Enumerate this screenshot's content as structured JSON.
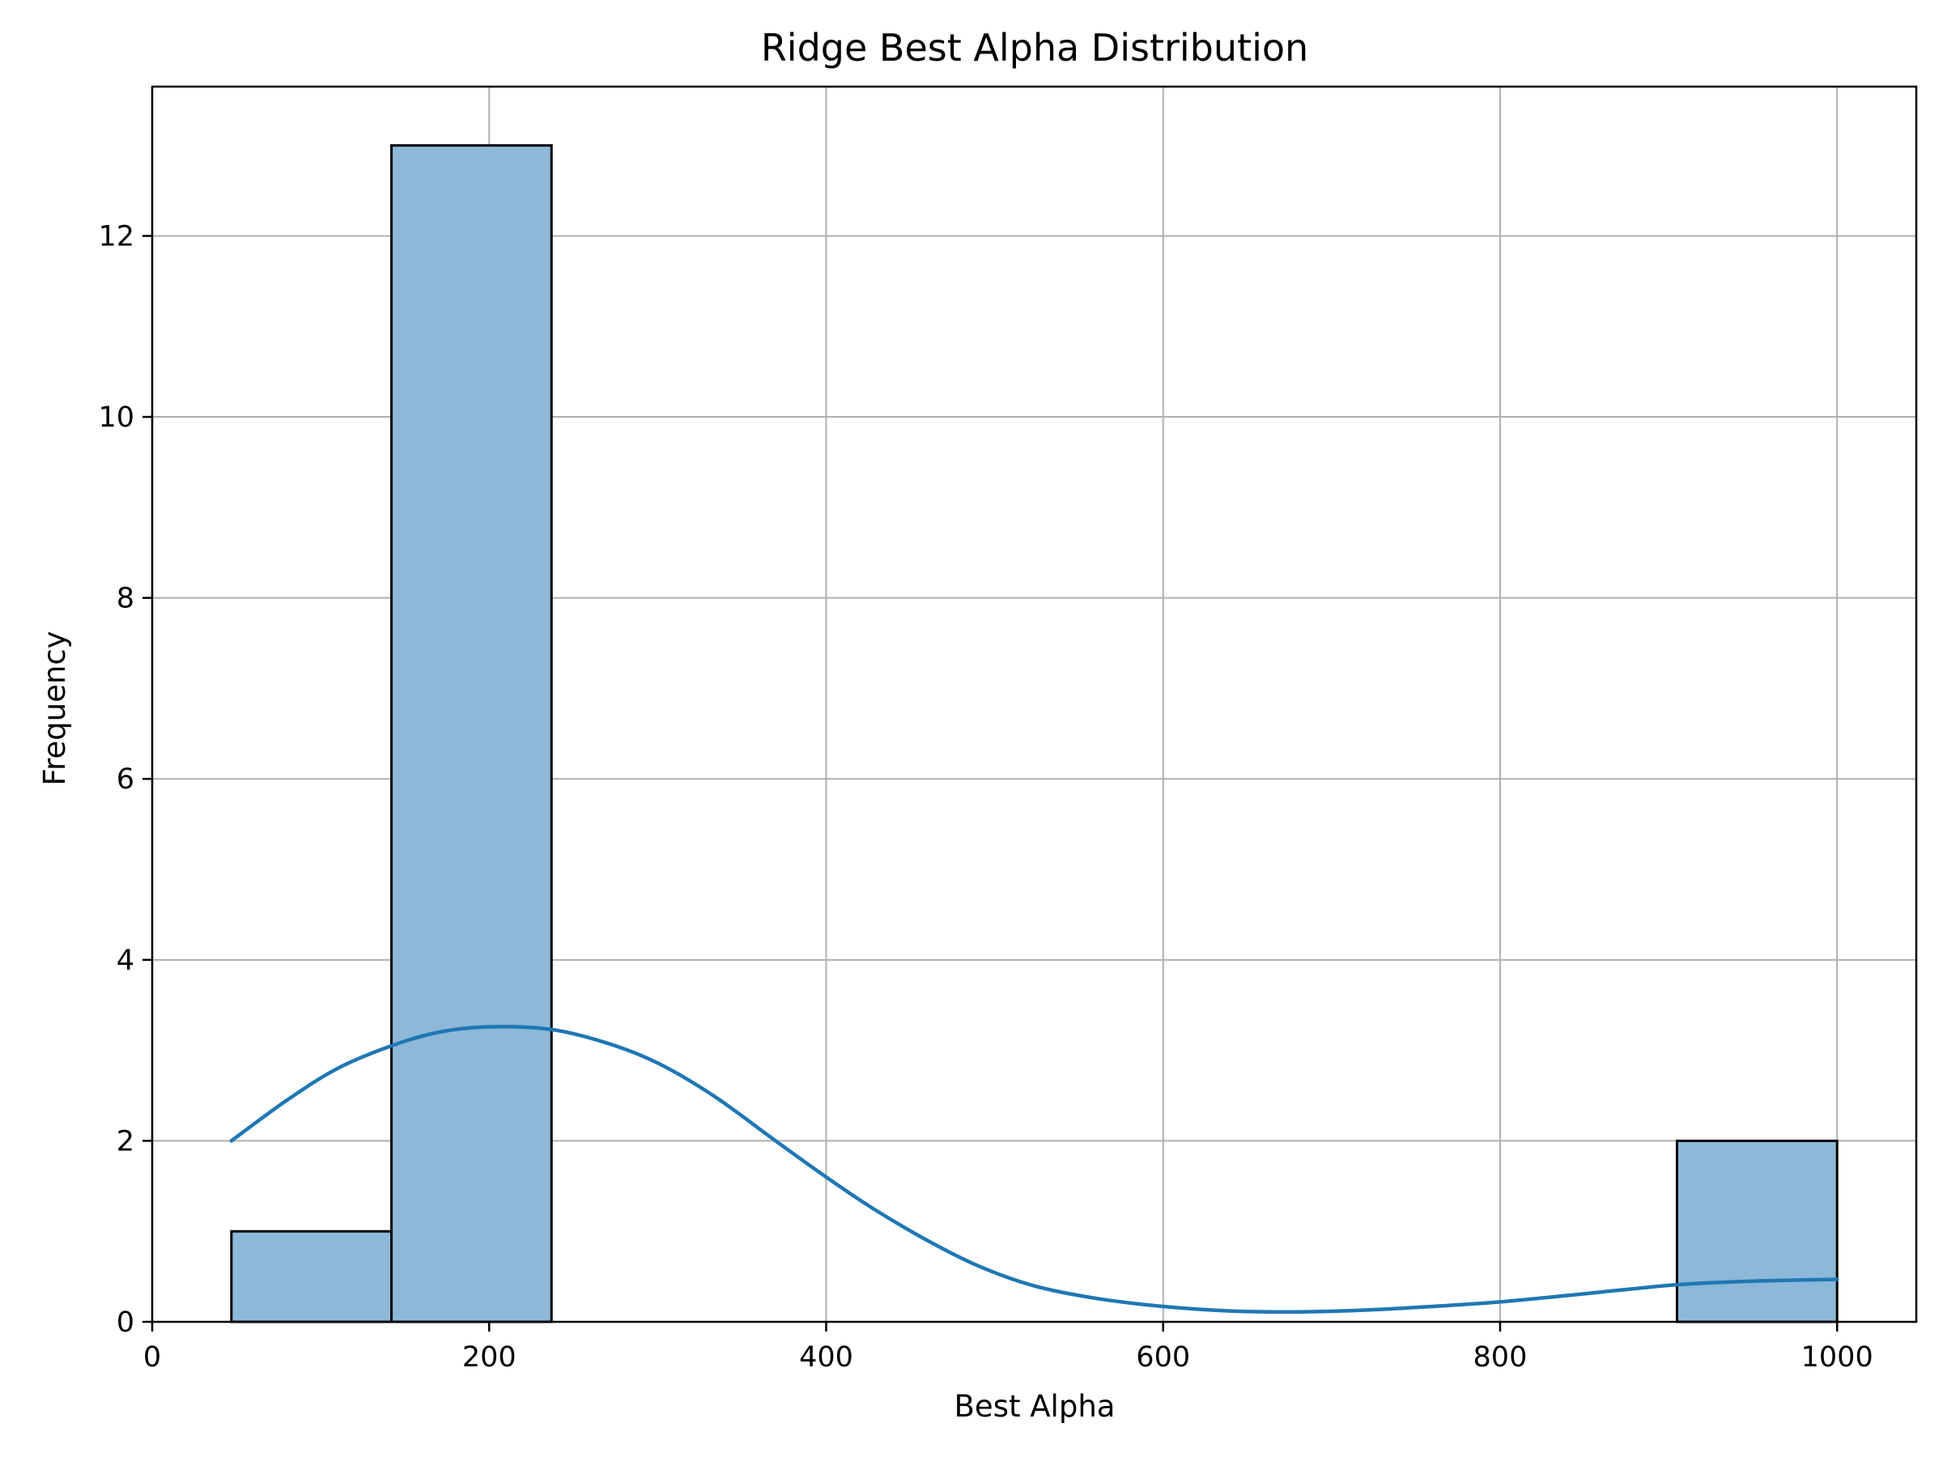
{
  "chart_data": {
    "type": "bar",
    "title": "Ridge Best Alpha Distribution",
    "xlabel": "Best Alpha",
    "ylabel": "Frequency",
    "xlim": [
      0,
      1047
    ],
    "ylim": [
      0,
      13.65
    ],
    "xticks": [
      0,
      200,
      400,
      600,
      800,
      1000
    ],
    "yticks": [
      0,
      2,
      4,
      6,
      8,
      10,
      12
    ],
    "grid": true,
    "bins": [
      {
        "start": 47,
        "end": 142,
        "count": 1
      },
      {
        "start": 142,
        "end": 237,
        "count": 13
      },
      {
        "start": 237,
        "end": 333,
        "count": 0
      },
      {
        "start": 333,
        "end": 428,
        "count": 0
      },
      {
        "start": 428,
        "end": 523,
        "count": 0
      },
      {
        "start": 523,
        "end": 619,
        "count": 0
      },
      {
        "start": 619,
        "end": 714,
        "count": 0
      },
      {
        "start": 714,
        "end": 809,
        "count": 0
      },
      {
        "start": 809,
        "end": 905,
        "count": 0
      },
      {
        "start": 905,
        "end": 1000,
        "count": 2
      }
    ],
    "kde": {
      "x": [
        47,
        80,
        110,
        142,
        170,
        200,
        237,
        270,
        300,
        333,
        370,
        400,
        428,
        460,
        490,
        523,
        560,
        600,
        640,
        680,
        720,
        760,
        800,
        850,
        905,
        950,
        1000
      ],
      "y": [
        2.0,
        2.45,
        2.8,
        3.05,
        3.2,
        3.26,
        3.23,
        3.08,
        2.86,
        2.5,
        2.0,
        1.6,
        1.25,
        0.9,
        0.62,
        0.4,
        0.26,
        0.17,
        0.12,
        0.11,
        0.13,
        0.17,
        0.22,
        0.31,
        0.41,
        0.45,
        0.47
      ]
    },
    "colors": {
      "bar_fill": "#8db8d8",
      "bar_edge": "#000000",
      "kde_line": "#1f77b4",
      "grid": "#b0b0b0"
    }
  }
}
